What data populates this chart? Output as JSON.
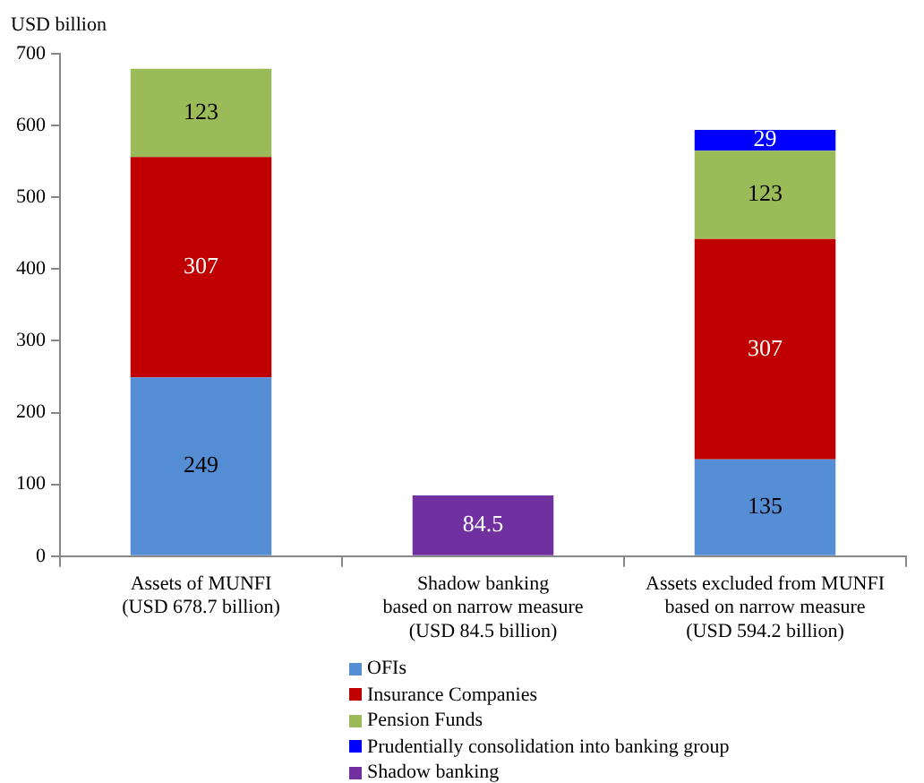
{
  "chart_data": {
    "type": "bar",
    "stacked": true,
    "ylabel": "USD billion",
    "categories": [
      "Assets of MUNFI\n(USD 678.7 billion)",
      "Shadow banking\nbased on narrow measure\n(USD 84.5 billion)",
      "Assets excluded from MUNFI\nbased on narrow measure\n(USD 594.2 billion)"
    ],
    "series": [
      {
        "name": "OFIs",
        "color": "#558ed5",
        "values": [
          249,
          null,
          135
        ]
      },
      {
        "name": "Insurance Companies",
        "color": "#c00000",
        "values": [
          307,
          null,
          307
        ]
      },
      {
        "name": "Pension Funds",
        "color": "#9bbb59",
        "values": [
          123,
          null,
          123
        ]
      },
      {
        "name": "Prudentially consolidation into banking group",
        "color": "#0000ff",
        "values": [
          null,
          null,
          29
        ]
      },
      {
        "name": "Shadow banking",
        "color": "#7030a0",
        "values": [
          null,
          84.5,
          null
        ]
      }
    ],
    "ylim": [
      0,
      700
    ],
    "yticks": [
      0,
      100,
      200,
      300,
      400,
      500,
      600,
      700
    ],
    "grid": false,
    "legend": "bottom",
    "data_labels": true
  }
}
